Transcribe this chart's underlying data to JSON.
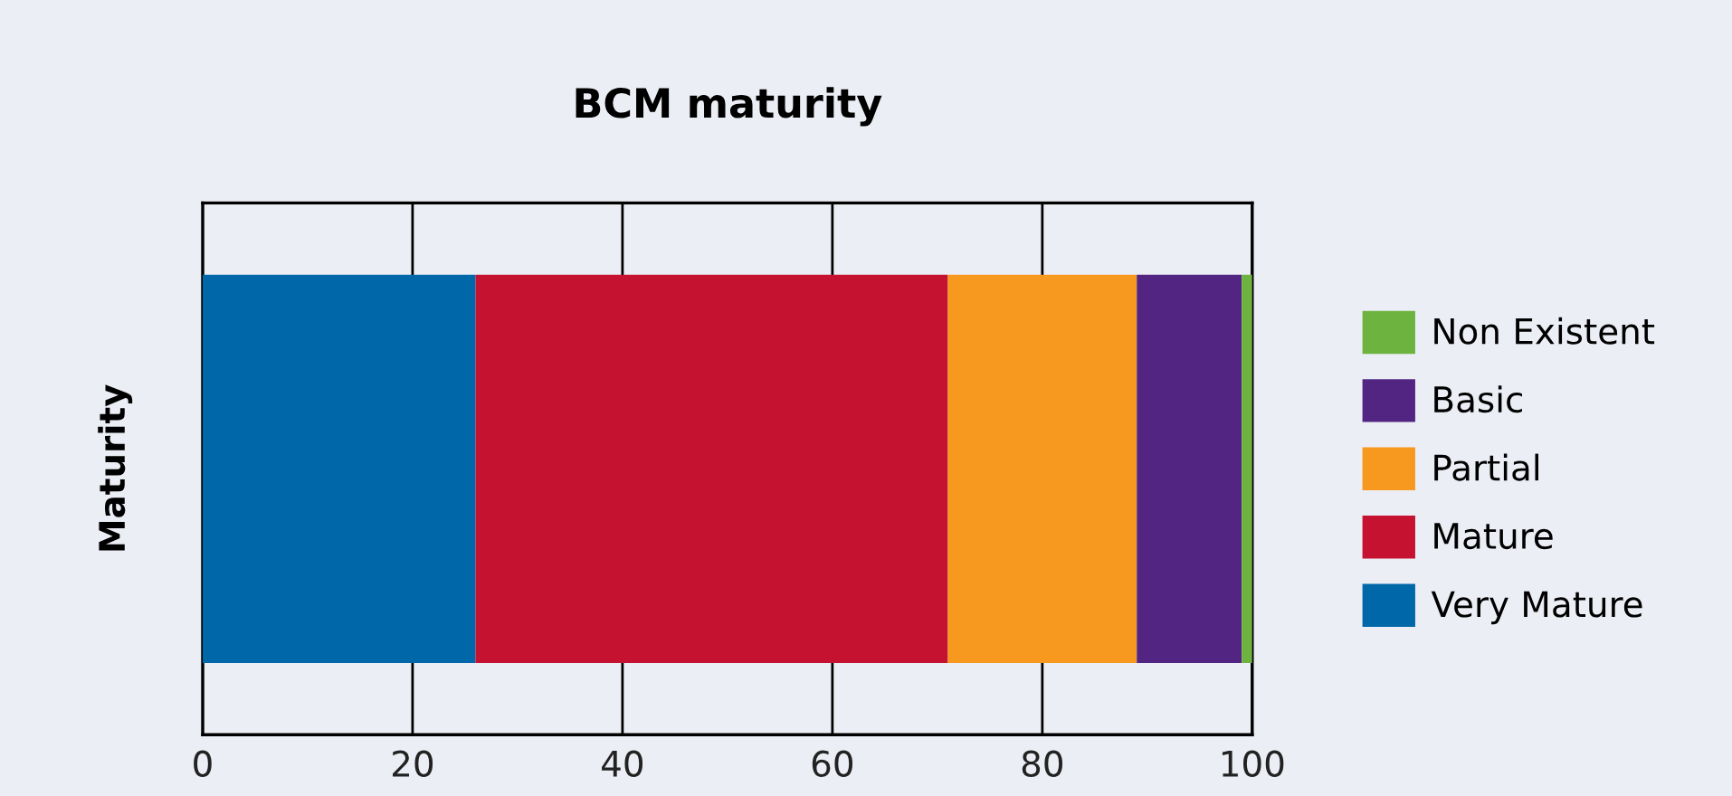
{
  "chart_data": {
    "type": "bar",
    "title": "BCM maturity",
    "ylabel": "Maturity",
    "orientation": "horizontal",
    "stacked": true,
    "categories": [
      null
    ],
    "series": [
      {
        "name": "Very Mature",
        "color": "#0068a8",
        "values": [
          26
        ]
      },
      {
        "name": "Mature",
        "color": "#c41230",
        "values": [
          45
        ]
      },
      {
        "name": "Partial",
        "color": "#f7981f",
        "values": [
          18
        ]
      },
      {
        "name": "Basic",
        "color": "#522583",
        "values": [
          10
        ]
      },
      {
        "name": "Non Existent",
        "color": "#6db33f",
        "values": [
          1
        ]
      }
    ],
    "xlim": [
      0,
      100
    ],
    "xticks": [
      0,
      20,
      40,
      60,
      80,
      100
    ],
    "grid": "x",
    "legend": "right"
  }
}
